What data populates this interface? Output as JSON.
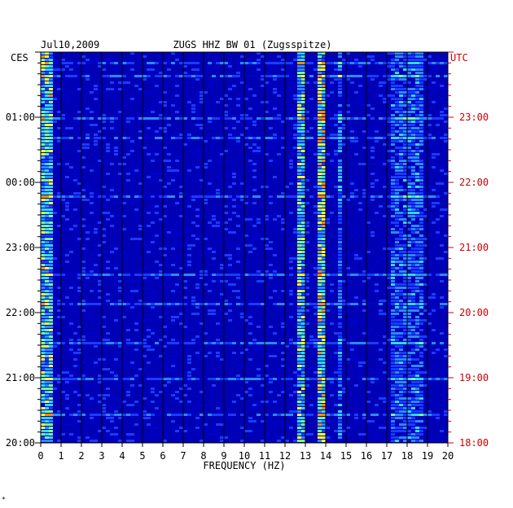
{
  "header": {
    "date": "Jul10,2009",
    "station": "ZUGS HHZ BW 01 (Zugsspitze)"
  },
  "corner_mark": "*",
  "chart_data": {
    "type": "heatmap",
    "title": "ZUGS HHZ BW 01 (Zugsspitze)",
    "subtitle": "Jul10,2009",
    "xlabel": "FREQUENCY (HZ)",
    "xlim": [
      0,
      20
    ],
    "x_ticks": [
      "0",
      "1",
      "2",
      "3",
      "4",
      "5",
      "6",
      "7",
      "8",
      "9",
      "10",
      "11",
      "12",
      "13",
      "14",
      "15",
      "16",
      "17",
      "18",
      "19",
      "20"
    ],
    "left_axis": {
      "label": "CES",
      "ticks": [
        "01:00",
        "00:00",
        "23:00",
        "22:00",
        "21:00",
        "20:00"
      ]
    },
    "right_axis": {
      "label": "UTC",
      "ticks": [
        "23:00",
        "22:00",
        "21:00",
        "20:00",
        "19:00",
        "18:00"
      ]
    },
    "time_span_hours": 6,
    "color_scale": [
      "#00007a",
      "#0000c8",
      "#1a3cff",
      "#2a8cff",
      "#30d8ff",
      "#7cff8a",
      "#ffff30",
      "#ff8c00",
      "#e00000"
    ],
    "grid": true,
    "bands": [
      {
        "freq": [
          0.1,
          0.6
        ],
        "level": 0.55
      },
      {
        "freq": [
          12.6,
          12.9
        ],
        "level": 0.5
      },
      {
        "freq": [
          13.7,
          14.0
        ],
        "level": 0.65
      },
      {
        "freq": [
          14.6,
          14.8
        ],
        "level": 0.3
      },
      {
        "freq": [
          17.2,
          18.8
        ],
        "level": 0.25
      }
    ]
  },
  "colors": {
    "left_axis": "#000000",
    "right_axis": "#cc0000",
    "plot_background": "#0000b4",
    "grid": "#000000"
  }
}
